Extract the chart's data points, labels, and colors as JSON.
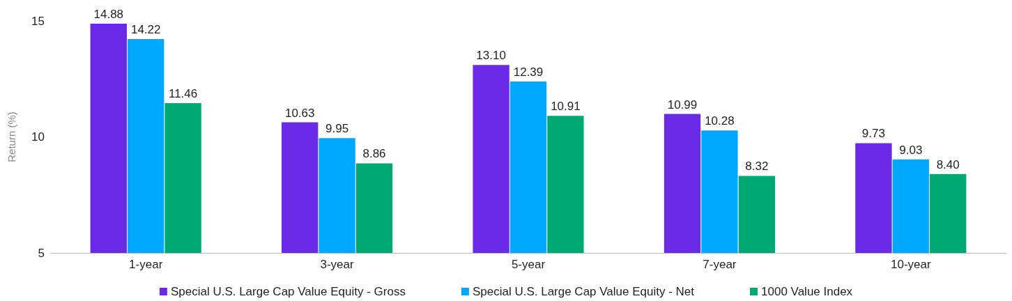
{
  "chart_data": {
    "type": "bar",
    "ylabel": "Return (%)",
    "categories": [
      "1-year",
      "3-year",
      "5-year",
      "7-year",
      "10-year"
    ],
    "series": [
      {
        "name": "Special U.S. Large Cap Value Equity - Gross",
        "color": "#6a2ae8",
        "values": [
          14.88,
          10.63,
          13.1,
          10.99,
          9.73
        ],
        "value_labels": [
          "14.88",
          "10.63",
          "13.10",
          "10.99",
          "9.73"
        ]
      },
      {
        "name": "Special U.S. Large Cap Value Equity - Net",
        "color": "#00a9ff",
        "values": [
          14.22,
          9.95,
          12.39,
          10.28,
          9.03
        ],
        "value_labels": [
          "14.22",
          "9.95",
          "12.39",
          "10.28",
          "9.03"
        ]
      },
      {
        "name": "1000 Value Index",
        "color": "#00a872",
        "values": [
          11.46,
          8.86,
          10.91,
          8.32,
          8.4
        ],
        "value_labels": [
          "11.46",
          "8.86",
          "10.91",
          "8.32",
          "8.40"
        ]
      }
    ],
    "ylim": [
      5,
      15
    ],
    "yticks": [
      5,
      10,
      15
    ],
    "grid": false,
    "legend": "bottom"
  }
}
